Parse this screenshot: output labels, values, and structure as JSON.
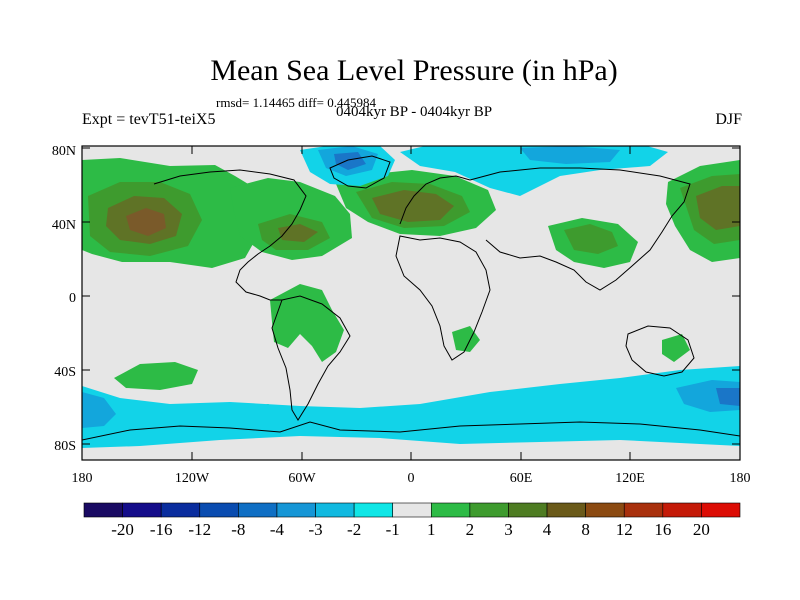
{
  "figure": {
    "title": "Mean Sea Level Pressure (in hPa)",
    "subtitle": "rmsd= 1.14465 diff= 0.445984",
    "center_label": "0404kyr BP - 0404kyr BP",
    "left_label": "Expt = tevT51-teiX5",
    "right_label": "DJF"
  },
  "axes": {
    "y_ticks": [
      "80N",
      "40N",
      "0",
      "40S",
      "80S"
    ],
    "x_ticks": [
      "180",
      "120W",
      "60W",
      "0",
      "60E",
      "120E",
      "180"
    ]
  },
  "colorbar": {
    "labels": [
      "-20",
      "-16",
      "-12",
      "-8",
      "-4",
      "-3",
      "-2",
      "-1",
      "1",
      "2",
      "3",
      "4",
      "8",
      "12",
      "16",
      "20"
    ],
    "colors": [
      "#1a0a63",
      "#140c8a",
      "#0a2d9e",
      "#0a4cb0",
      "#0f6fc4",
      "#1696d6",
      "#11b9e0",
      "#10e6e6",
      "#e6e6e6",
      "#2dbb46",
      "#3e9b2e",
      "#4e7c22",
      "#6a5a1a",
      "#8b4a12",
      "#a8300c",
      "#c41a08",
      "#dc0c04"
    ]
  },
  "legend_colors": {
    "land_outline": "#000000",
    "neutral": "#e6e6e6",
    "pos1": "#2dbb46",
    "pos2": "#3e9b2e",
    "pos3": "#5f7326",
    "pos4": "#7a5a2a",
    "neg1": "#12d3e8",
    "neg2": "#13a6dc",
    "neg3": "#1a76c8"
  }
}
